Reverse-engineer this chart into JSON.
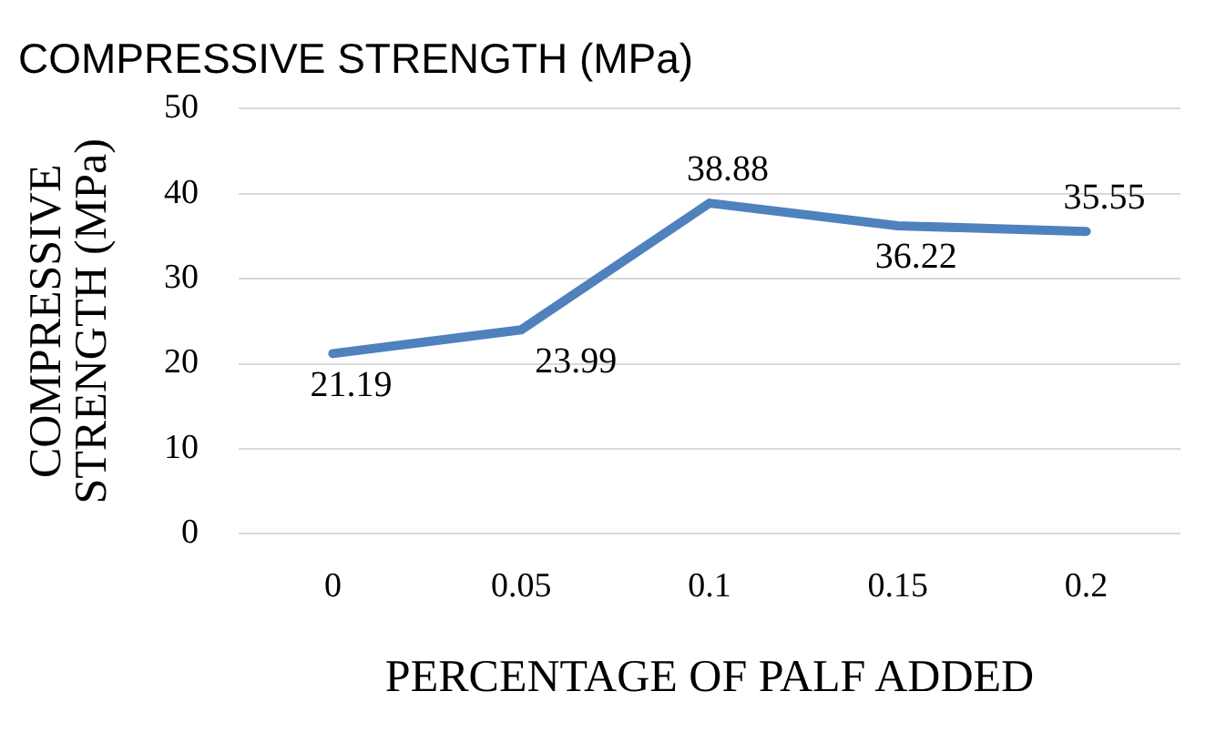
{
  "chart_data": {
    "type": "line",
    "title": "COMPRESSIVE STRENGTH (MPa)",
    "xlabel": "PERCENTAGE OF PALF ADDED",
    "ylabel": "COMPRESSIVE STRENGTH (MPa)",
    "categories": [
      "0",
      "0.05",
      "0.1",
      "0.15",
      "0.2"
    ],
    "series": [
      {
        "color": "#4f81bd",
        "values": [
          21.19,
          23.99,
          38.88,
          36.22,
          35.55
        ]
      }
    ],
    "ylim": [
      0,
      50
    ],
    "yticks": [
      0,
      10,
      20,
      30,
      40,
      50
    ],
    "grid": "y",
    "legend": false,
    "marker": "none",
    "line_style": "solid",
    "data_labels": true
  }
}
